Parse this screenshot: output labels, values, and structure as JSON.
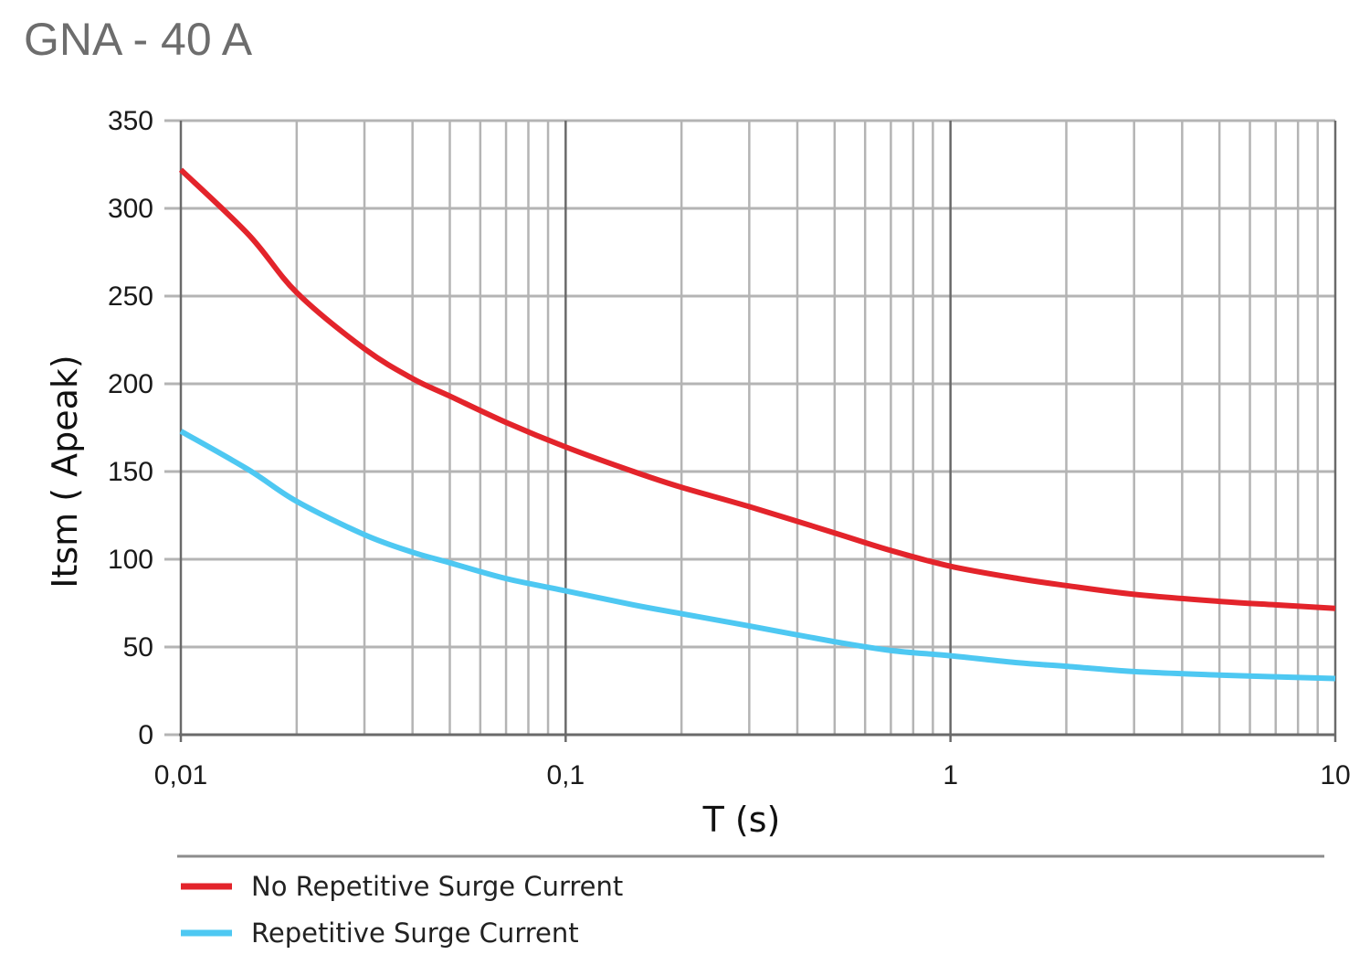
{
  "colors": {
    "series_no_repetitive": "#e3242b",
    "series_repetitive": "#4ec8f2",
    "grid": "#b4b4b4",
    "major_grid": "#6a6a6a",
    "title": "#6d6d6d"
  },
  "chart_data": {
    "type": "line",
    "title": "GNA - 40 A",
    "xlabel": "T (s)",
    "ylabel": "Itsm ( Apeak)",
    "xscale": "log",
    "xlim": [
      0.01,
      10
    ],
    "ylim": [
      0,
      350
    ],
    "x_tick_values": [
      0.01,
      0.1,
      1,
      10
    ],
    "x_tick_labels": [
      "0,01",
      "0,1",
      "1",
      "10"
    ],
    "y_tick_values": [
      0,
      50,
      100,
      150,
      200,
      250,
      300,
      350
    ],
    "y_tick_labels": [
      "0",
      "50",
      "100",
      "150",
      "200",
      "250",
      "300",
      "350"
    ],
    "grid": true,
    "legend_position": "bottom-left",
    "series": [
      {
        "name": "No Repetitive Surge Current",
        "color": "#e3242b",
        "x": [
          0.01,
          0.015,
          0.02,
          0.03,
          0.04,
          0.05,
          0.07,
          0.1,
          0.15,
          0.2,
          0.3,
          0.5,
          0.7,
          1,
          1.5,
          2,
          3,
          5,
          7,
          10
        ],
        "y": [
          322,
          285,
          252,
          220,
          203,
          193,
          178,
          164,
          150,
          141,
          130,
          115,
          105,
          96,
          89,
          85,
          80,
          76,
          74,
          72
        ]
      },
      {
        "name": "Repetitive Surge Current",
        "color": "#4ec8f2",
        "x": [
          0.01,
          0.015,
          0.02,
          0.03,
          0.04,
          0.05,
          0.07,
          0.1,
          0.15,
          0.2,
          0.3,
          0.5,
          0.7,
          1,
          1.5,
          2,
          3,
          5,
          7,
          10
        ],
        "y": [
          173,
          151,
          133,
          114,
          104,
          98,
          89,
          82,
          74,
          69,
          62,
          53,
          48,
          45,
          41,
          39,
          36,
          34,
          33,
          32
        ]
      }
    ]
  }
}
